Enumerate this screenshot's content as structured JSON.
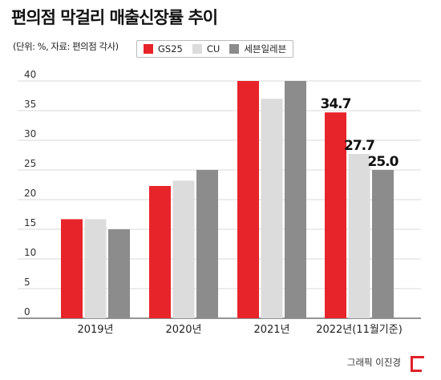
{
  "title": "편의점 막걸리 매출신장률 추이",
  "subtitle": "(단위: %, 자료: 편의점 각사)",
  "credit": "그래픽 이진경",
  "colors": {
    "GS25": "#e8242b",
    "CU": "#dcdcdc",
    "세븐일레븐": "#8c8c8c"
  },
  "chart_data": {
    "type": "bar",
    "categories": [
      "2019년",
      "2020년",
      "2021년",
      "2022년(11월기준)"
    ],
    "series": [
      {
        "name": "GS25",
        "values": [
          16.7,
          22.3,
          40,
          34.7
        ]
      },
      {
        "name": "CU",
        "values": [
          16.7,
          23.2,
          37,
          27.7
        ]
      },
      {
        "name": "세븐일레븐",
        "values": [
          15,
          25,
          40,
          25.0
        ]
      }
    ],
    "data_labels": {
      "category_index": 3,
      "labels": [
        "34.7",
        "27.7",
        "25.0"
      ]
    },
    "yticks": [
      "0",
      "5",
      "10",
      "15",
      "20",
      "25",
      "30",
      "35",
      "40"
    ],
    "ylim": [
      0,
      40
    ],
    "grid": true,
    "legend_position": "top"
  }
}
